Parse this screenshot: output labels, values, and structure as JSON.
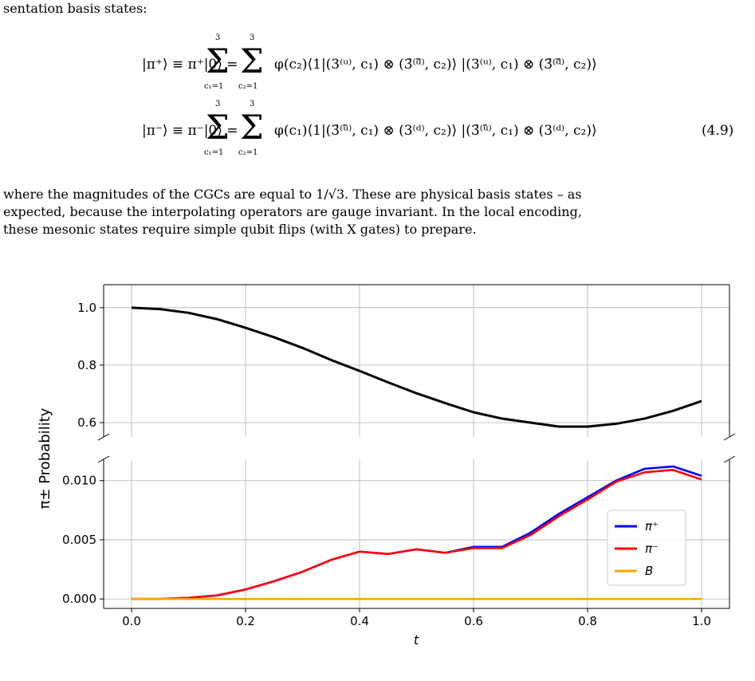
{
  "text": {
    "intro": "sentation basis states:",
    "eq1_lhs": "|π⁺⟩ ≡ π⁺|0⟩ =",
    "eq1_rhs": "φ(c₂)⟨1|(3⁽ᵘ⁾, c₁) ⊗ (3̄⁽ᵈ̄⁾, c₂)⟩ |(3⁽ᵘ⁾, c₁) ⊗ (3̄⁽ᵈ̄⁾, c₂)⟩",
    "eq2_lhs": "|π⁻⟩ ≡ π⁻|0⟩ =",
    "eq2_rhs": "φ(c₁)⟨1|(3̄⁽ᵘ̄⁾, c₁) ⊗ (3⁽ᵈ⁾, c₂)⟩ |(3̄⁽ᵘ̄⁾, c₁) ⊗ (3⁽ᵈ⁾, c₂)⟩",
    "sum_upper": "3",
    "sum_lower1": "c₁=1",
    "sum_lower2": "c₂=1",
    "eq_number": "(4.9)",
    "para_line1": "where the magnitudes of the CGCs are equal to 1/√3.  These are physical basis states – as",
    "para_line2": "expected, because the interpolating operators are gauge invariant.  In the local encoding,",
    "para_line3": "these mesonic states require simple qubit flips (with X gates) to prepare."
  },
  "chart_data": {
    "type": "line",
    "ylabel": "π± Probability",
    "xlabel": "t",
    "x": [
      0.0,
      0.05,
      0.1,
      0.15,
      0.2,
      0.25,
      0.3,
      0.35,
      0.4,
      0.45,
      0.5,
      0.55,
      0.6,
      0.65,
      0.7,
      0.75,
      0.8,
      0.85,
      0.9,
      0.95,
      1.0
    ],
    "x_ticks": [
      "0.0",
      "0.2",
      "0.4",
      "0.6",
      "0.8",
      "1.0"
    ],
    "upper_panel": {
      "ylim": [
        0.55,
        1.08
      ],
      "y_ticks": [
        "1.0",
        "0.8",
        "0.6"
      ],
      "series": [
        {
          "name": "",
          "color": "#000000",
          "values": [
            1.0,
            0.995,
            0.982,
            0.96,
            0.93,
            0.897,
            0.86,
            0.818,
            0.78,
            0.74,
            0.702,
            0.668,
            0.636,
            0.614,
            0.6,
            0.586,
            0.586,
            0.596,
            0.614,
            0.641,
            0.675
          ]
        }
      ]
    },
    "lower_panel": {
      "ylim": [
        -0.0008,
        0.0118
      ],
      "y_ticks": [
        "0.010",
        "0.005",
        "0.000"
      ],
      "series": [
        {
          "name": "π⁺",
          "color": "#0000ff",
          "values": [
            0.0,
            0.0,
            0.0001,
            0.0003,
            0.0008,
            0.0015,
            0.0023,
            0.0033,
            0.004,
            0.0038,
            0.0042,
            0.0039,
            0.0044,
            0.0044,
            0.0056,
            0.0072,
            0.0086,
            0.01,
            0.011,
            0.0112,
            0.0104
          ]
        },
        {
          "name": "π⁻",
          "color": "#ff0000",
          "values": [
            0.0,
            0.0,
            0.0001,
            0.0003,
            0.0008,
            0.0015,
            0.0023,
            0.0033,
            0.004,
            0.0038,
            0.0042,
            0.0039,
            0.0043,
            0.0043,
            0.0054,
            0.007,
            0.0084,
            0.0099,
            0.0107,
            0.0109,
            0.0101
          ]
        },
        {
          "name": "B",
          "color": "#ffa500",
          "values": [
            0,
            0,
            0,
            0,
            0,
            0,
            0,
            0,
            0,
            0,
            0,
            0,
            0,
            0,
            0,
            0,
            0,
            0,
            0,
            0,
            0
          ]
        }
      ]
    },
    "legend": "right",
    "grid": true
  }
}
